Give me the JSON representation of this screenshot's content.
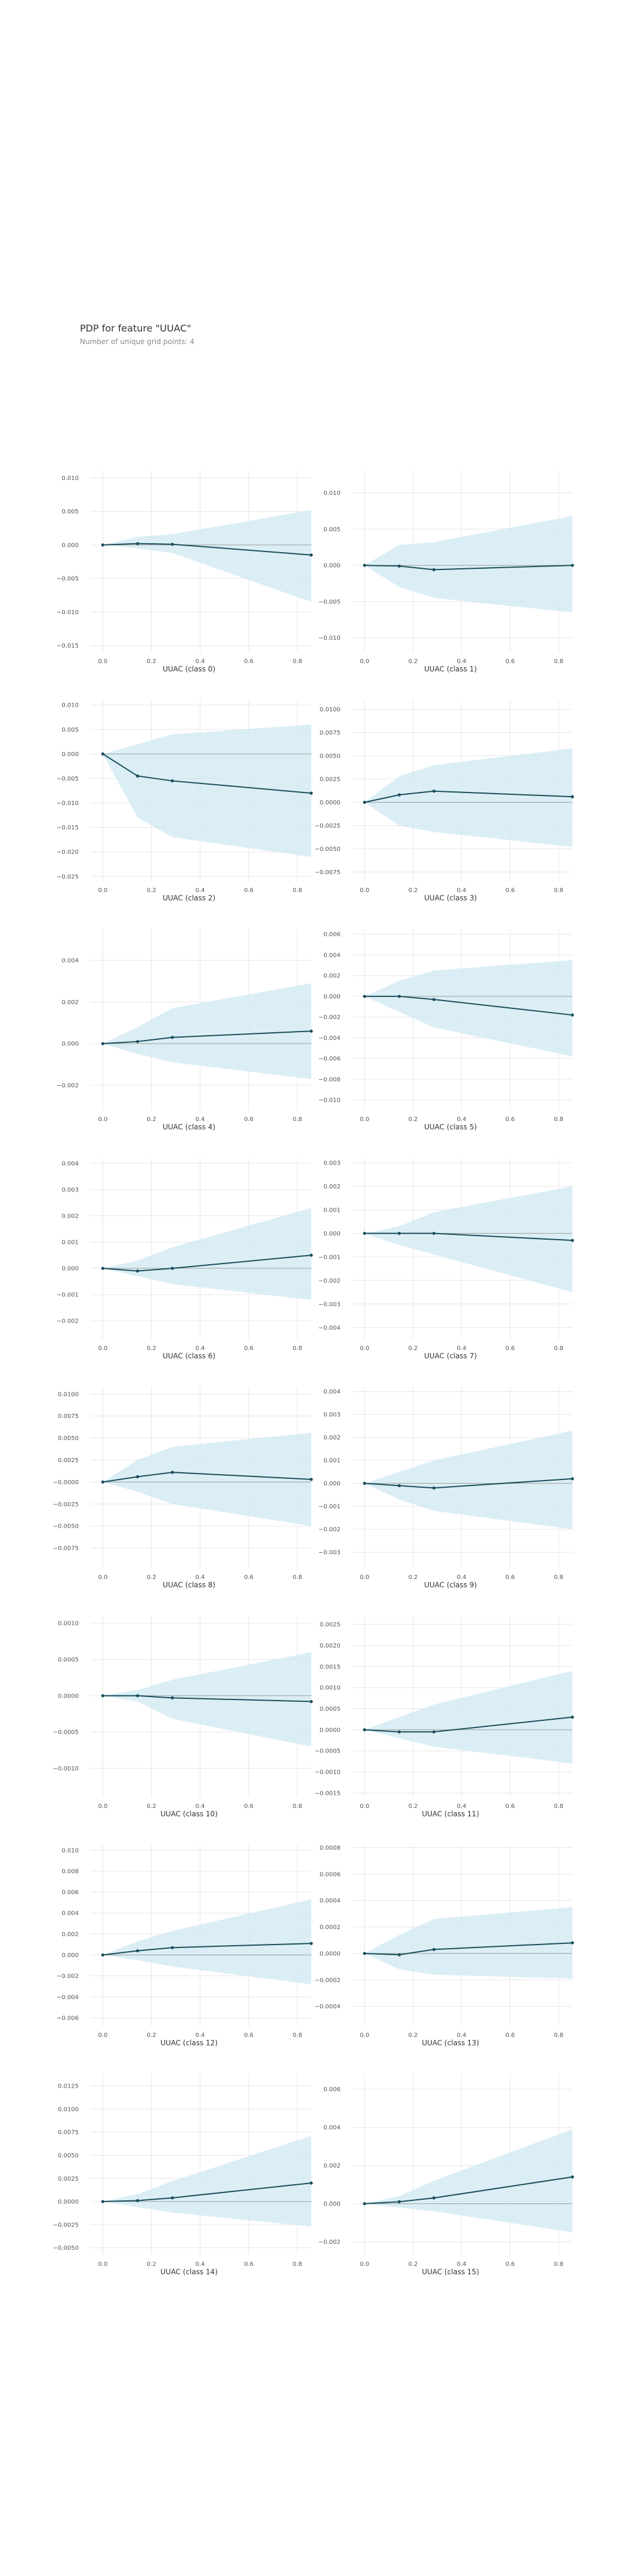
{
  "header": {
    "title": "PDP for feature \"UUAC\"",
    "subtitle": "Number of unique grid points: 4"
  },
  "colors": {
    "band": "#cfe8f3",
    "line": "#1a4e5a",
    "zero_line": "#9e9e9e",
    "grid": "#e6e6e6",
    "tick_text": "#555555"
  },
  "chart_data": [
    {
      "type": "line",
      "xlabel": "UUAC (class 0)",
      "x": [
        0,
        0.143,
        0.286,
        0.857
      ],
      "xticks": [
        0,
        0.2,
        0.4,
        0.6,
        0.8
      ],
      "xticklabels": [
        "0.0",
        "0.2",
        "0.4",
        "0.6",
        "0.8"
      ],
      "ylim": [
        -0.016,
        0.011
      ],
      "yticks": [
        0.01,
        0.005,
        0,
        -0.005,
        -0.01,
        -0.015
      ],
      "yticklabels": [
        "0.010",
        "0.005",
        "0.000",
        "−0.005",
        "−0.010",
        "−0.015"
      ],
      "series": [
        {
          "values": [
            0,
            0.0002,
            0.0001,
            -0.0015
          ],
          "lower": [
            0,
            -0.0005,
            -0.0012,
            -0.0085
          ],
          "upper": [
            0,
            0.0012,
            0.0016,
            0.0052
          ]
        }
      ]
    },
    {
      "type": "line",
      "xlabel": "UUAC (class 1)",
      "x": [
        0,
        0.143,
        0.286,
        0.857
      ],
      "xticks": [
        0,
        0.2,
        0.4,
        0.6,
        0.8
      ],
      "xticklabels": [
        "0.0",
        "0.2",
        "0.4",
        "0.6",
        "0.8"
      ],
      "ylim": [
        -0.012,
        0.013
      ],
      "yticks": [
        0.01,
        0.005,
        0,
        -0.005,
        -0.01
      ],
      "yticklabels": [
        "0.010",
        "0.005",
        "0.000",
        "−0.005",
        "−0.010"
      ],
      "series": [
        {
          "values": [
            0,
            -0.0001,
            -0.0006,
            0
          ],
          "lower": [
            0,
            -0.003,
            -0.0045,
            -0.0065
          ],
          "upper": [
            0,
            0.0028,
            0.0032,
            0.0068
          ]
        }
      ]
    },
    {
      "type": "line",
      "xlabel": "UUAC (class 2)",
      "x": [
        0,
        0.143,
        0.286,
        0.857
      ],
      "xticks": [
        0,
        0.2,
        0.4,
        0.6,
        0.8
      ],
      "xticklabels": [
        "0.0",
        "0.2",
        "0.4",
        "0.6",
        "0.8"
      ],
      "ylim": [
        -0.026,
        0.011
      ],
      "yticks": [
        0.01,
        0.005,
        0,
        -0.005,
        -0.01,
        -0.015,
        -0.02,
        -0.025
      ],
      "yticklabels": [
        "0.010",
        "0.005",
        "0.000",
        "−0.005",
        "−0.010",
        "−0.015",
        "−0.020",
        "−0.025"
      ],
      "series": [
        {
          "values": [
            0,
            -0.0045,
            -0.0055,
            -0.008
          ],
          "lower": [
            0,
            -0.013,
            -0.017,
            -0.021
          ],
          "upper": [
            0,
            0.002,
            0.004,
            0.006
          ]
        }
      ]
    },
    {
      "type": "line",
      "xlabel": "UUAC (class 3)",
      "x": [
        0,
        0.143,
        0.286,
        0.857
      ],
      "xticks": [
        0,
        0.2,
        0.4,
        0.6,
        0.8
      ],
      "xticklabels": [
        "0.0",
        "0.2",
        "0.4",
        "0.6",
        "0.8"
      ],
      "ylim": [
        -0.0085,
        0.011
      ],
      "yticks": [
        0.01,
        0.0075,
        0.005,
        0.0025,
        0,
        -0.0025,
        -0.005,
        -0.0075
      ],
      "yticklabels": [
        "0.0100",
        "0.0075",
        "0.0050",
        "0.0025",
        "0.0000",
        "−0.0025",
        "−0.0050",
        "−0.0075"
      ],
      "series": [
        {
          "values": [
            0,
            0.0008,
            0.0012,
            0.0006
          ],
          "lower": [
            0,
            -0.0025,
            -0.0032,
            -0.0048
          ],
          "upper": [
            0,
            0.0028,
            0.004,
            0.0058
          ]
        }
      ]
    },
    {
      "type": "line",
      "xlabel": "UUAC (class 4)",
      "x": [
        0,
        0.143,
        0.286,
        0.857
      ],
      "xticks": [
        0,
        0.2,
        0.4,
        0.6,
        0.8
      ],
      "xticklabels": [
        "0.0",
        "0.2",
        "0.4",
        "0.6",
        "0.8"
      ],
      "ylim": [
        -0.0032,
        0.0055
      ],
      "yticks": [
        0.004,
        0.002,
        0,
        -0.002
      ],
      "yticklabels": [
        "0.004",
        "0.002",
        "0.000",
        "−0.002"
      ],
      "series": [
        {
          "values": [
            0,
            0.0001,
            0.0003,
            0.0006
          ],
          "lower": [
            0,
            -0.0005,
            -0.0009,
            -0.0017
          ],
          "upper": [
            0,
            0.0008,
            0.0017,
            0.0029
          ]
        }
      ]
    },
    {
      "type": "line",
      "xlabel": "UUAC (class 5)",
      "x": [
        0,
        0.143,
        0.286,
        0.857
      ],
      "xticks": [
        0,
        0.2,
        0.4,
        0.6,
        0.8
      ],
      "xticklabels": [
        "0.0",
        "0.2",
        "0.4",
        "0.6",
        "0.8"
      ],
      "ylim": [
        -0.011,
        0.0065
      ],
      "yticks": [
        0.006,
        0.004,
        0.002,
        0,
        -0.002,
        -0.004,
        -0.006,
        -0.008,
        -0.01
      ],
      "yticklabels": [
        "0.006",
        "0.004",
        "0.002",
        "0.000",
        "−0.002",
        "−0.004",
        "−0.006",
        "−0.008",
        "−0.010"
      ],
      "series": [
        {
          "values": [
            0,
            0,
            -0.0003,
            -0.0018
          ],
          "lower": [
            0,
            -0.0015,
            -0.003,
            -0.0058
          ],
          "upper": [
            0,
            0.0015,
            0.0025,
            0.0035
          ]
        }
      ]
    },
    {
      "type": "line",
      "xlabel": "UUAC (class 6)",
      "x": [
        0,
        0.143,
        0.286,
        0.857
      ],
      "xticks": [
        0,
        0.2,
        0.4,
        0.6,
        0.8
      ],
      "xticklabels": [
        "0.0",
        "0.2",
        "0.4",
        "0.6",
        "0.8"
      ],
      "ylim": [
        -0.0027,
        0.0042
      ],
      "yticks": [
        0.004,
        0.003,
        0.002,
        0.001,
        0,
        -0.001,
        -0.002
      ],
      "yticklabels": [
        "0.004",
        "0.003",
        "0.002",
        "0.001",
        "0.000",
        "−0.001",
        "−0.002"
      ],
      "series": [
        {
          "values": [
            0,
            -0.0001,
            0,
            0.0005
          ],
          "lower": [
            0,
            -0.0003,
            -0.0006,
            -0.0012
          ],
          "upper": [
            0,
            0.0003,
            0.0008,
            0.0023
          ]
        }
      ]
    },
    {
      "type": "line",
      "xlabel": "UUAC (class 7)",
      "x": [
        0,
        0.143,
        0.286,
        0.857
      ],
      "xticks": [
        0,
        0.2,
        0.4,
        0.6,
        0.8
      ],
      "xticklabels": [
        "0.0",
        "0.2",
        "0.4",
        "0.6",
        "0.8"
      ],
      "ylim": [
        -0.0045,
        0.0032
      ],
      "yticks": [
        0.003,
        0.002,
        0.001,
        0,
        -0.001,
        -0.002,
        -0.003,
        -0.004
      ],
      "yticklabels": [
        "0.003",
        "0.002",
        "0.001",
        "0.000",
        "−0.001",
        "−0.002",
        "−0.003",
        "−0.004"
      ],
      "series": [
        {
          "values": [
            0,
            0,
            0,
            -0.0003
          ],
          "lower": [
            0,
            -0.0005,
            -0.0009,
            -0.0025
          ],
          "upper": [
            0,
            0.0003,
            0.0009,
            0.002
          ]
        }
      ]
    },
    {
      "type": "line",
      "xlabel": "UUAC (class 8)",
      "x": [
        0,
        0.143,
        0.286,
        0.857
      ],
      "xticks": [
        0,
        0.2,
        0.4,
        0.6,
        0.8
      ],
      "xticklabels": [
        "0.0",
        "0.2",
        "0.4",
        "0.6",
        "0.8"
      ],
      "ylim": [
        -0.0098,
        0.0108
      ],
      "yticks": [
        0.01,
        0.0075,
        0.005,
        0.0025,
        0,
        -0.0025,
        -0.005,
        -0.0075
      ],
      "yticklabels": [
        "0.0100",
        "0.0075",
        "0.0050",
        "0.0025",
        "−0.0000",
        "−0.0025",
        "−0.0050",
        "−0.0075"
      ],
      "series": [
        {
          "values": [
            0,
            0.0006,
            0.0011,
            0.0003
          ],
          "lower": [
            0,
            -0.0011,
            -0.0025,
            -0.005
          ],
          "upper": [
            0,
            0.0025,
            0.004,
            0.0056
          ]
        }
      ]
    },
    {
      "type": "line",
      "xlabel": "UUAC (class 9)",
      "x": [
        0,
        0.143,
        0.286,
        0.857
      ],
      "xticks": [
        0,
        0.2,
        0.4,
        0.6,
        0.8
      ],
      "xticklabels": [
        "0.0",
        "0.2",
        "0.4",
        "0.6",
        "0.8"
      ],
      "ylim": [
        -0.0037,
        0.0042
      ],
      "yticks": [
        0.004,
        0.003,
        0.002,
        0.001,
        0,
        -0.001,
        -0.002,
        -0.003
      ],
      "yticklabels": [
        "0.004",
        "0.003",
        "0.002",
        "0.001",
        "0.000",
        "−0.001",
        "−0.002",
        "−0.003"
      ],
      "series": [
        {
          "values": [
            0,
            -0.0001,
            -0.0002,
            0.0002
          ],
          "lower": [
            0,
            -0.0007,
            -0.0012,
            -0.002
          ],
          "upper": [
            0,
            0.0005,
            0.001,
            0.0023
          ]
        }
      ]
    },
    {
      "type": "line",
      "xlabel": "UUAC (class 10)",
      "x": [
        0,
        0.143,
        0.286,
        0.857
      ],
      "xticks": [
        0,
        0.2,
        0.4,
        0.6,
        0.8
      ],
      "xticklabels": [
        "0.0",
        "0.2",
        "0.4",
        "0.6",
        "0.8"
      ],
      "ylim": [
        -0.0014,
        0.0011
      ],
      "yticks": [
        0.001,
        0.0005,
        0,
        -0.0005,
        -0.001
      ],
      "yticklabels": [
        "0.0010",
        "0.0005",
        "0.0000",
        "−0.0005",
        "−0.0010"
      ],
      "series": [
        {
          "values": [
            0,
            0,
            -3e-05,
            -8e-05
          ],
          "lower": [
            0,
            -8e-05,
            -0.00032,
            -0.0007
          ],
          "upper": [
            0,
            8e-05,
            0.00022,
            0.0006
          ]
        }
      ]
    },
    {
      "type": "line",
      "xlabel": "UUAC (class 11)",
      "x": [
        0,
        0.143,
        0.286,
        0.857
      ],
      "xticks": [
        0,
        0.2,
        0.4,
        0.6,
        0.8
      ],
      "xticklabels": [
        "0.0",
        "0.2",
        "0.4",
        "0.6",
        "0.8"
      ],
      "ylim": [
        -0.0016,
        0.0027
      ],
      "yticks": [
        0.0025,
        0.002,
        0.0015,
        0.001,
        0.0005,
        0,
        -0.0005,
        -0.001,
        -0.0015
      ],
      "yticklabels": [
        "0.0025",
        "0.0020",
        "0.0015",
        "0.0010",
        "0.0005",
        "0.0000",
        "−0.0005",
        "−0.0010",
        "−0.0015"
      ],
      "series": [
        {
          "values": [
            0,
            -5e-05,
            -5e-05,
            0.0003
          ],
          "lower": [
            0,
            -0.0002,
            -0.0004,
            -0.0008
          ],
          "upper": [
            0,
            0.0003,
            0.0006,
            0.0014
          ]
        }
      ]
    },
    {
      "type": "line",
      "xlabel": "UUAC (class 12)",
      "x": [
        0,
        0.143,
        0.286,
        0.857
      ],
      "xticks": [
        0,
        0.2,
        0.4,
        0.6,
        0.8
      ],
      "xticklabels": [
        "0.0",
        "0.2",
        "0.4",
        "0.6",
        "0.8"
      ],
      "ylim": [
        -0.0068,
        0.0105
      ],
      "yticks": [
        0.01,
        0.008,
        0.006,
        0.004,
        0.002,
        0,
        -0.002,
        -0.004,
        -0.006
      ],
      "yticklabels": [
        "0.010",
        "0.008",
        "0.006",
        "0.004",
        "0.002",
        "0.000",
        "−0.002",
        "−0.004",
        "−0.006"
      ],
      "series": [
        {
          "values": [
            0,
            0.0004,
            0.0007,
            0.0011
          ],
          "lower": [
            0,
            -0.0005,
            -0.0011,
            -0.0028
          ],
          "upper": [
            0,
            0.0013,
            0.0023,
            0.0053
          ]
        }
      ]
    },
    {
      "type": "line",
      "xlabel": "UUAC (class 13)",
      "x": [
        0,
        0.143,
        0.286,
        0.857
      ],
      "xticks": [
        0,
        0.2,
        0.4,
        0.6,
        0.8
      ],
      "xticklabels": [
        "0.0",
        "0.2",
        "0.4",
        "0.6",
        "0.8"
      ],
      "ylim": [
        -0.00055,
        0.00082
      ],
      "yticks": [
        0.0008,
        0.0006,
        0.0004,
        0.0002,
        0,
        -0.0002,
        -0.0004
      ],
      "yticklabels": [
        "0.0008",
        "0.0006",
        "0.0004",
        "0.0002",
        "0.0000",
        "−0.0002",
        "−0.0004"
      ],
      "series": [
        {
          "values": [
            0,
            -1e-05,
            3e-05,
            8e-05
          ],
          "lower": [
            0,
            -0.00012,
            -0.00016,
            -0.00019
          ],
          "upper": [
            0,
            0.00014,
            0.00026,
            0.00035
          ]
        }
      ]
    },
    {
      "type": "line",
      "xlabel": "UUAC (class 14)",
      "x": [
        0,
        0.143,
        0.286,
        0.857
      ],
      "xticks": [
        0,
        0.2,
        0.4,
        0.6,
        0.8
      ],
      "xticklabels": [
        "0.0",
        "0.2",
        "0.4",
        "0.6",
        "0.8"
      ],
      "ylim": [
        -0.0058,
        0.0138
      ],
      "yticks": [
        0.0125,
        0.01,
        0.0075,
        0.005,
        0.0025,
        0,
        -0.0025,
        -0.005
      ],
      "yticklabels": [
        "0.0125",
        "0.0100",
        "0.0075",
        "0.0050",
        "0.0025",
        "0.0000",
        "−0.0025",
        "−0.0050"
      ],
      "series": [
        {
          "values": [
            0,
            0.0001,
            0.0004,
            0.002
          ],
          "lower": [
            0,
            -0.0006,
            -0.0012,
            -0.0027
          ],
          "upper": [
            0,
            0.0008,
            0.0022,
            0.0071
          ]
        }
      ]
    },
    {
      "type": "line",
      "xlabel": "UUAC (class 15)",
      "x": [
        0,
        0.143,
        0.286,
        0.857
      ],
      "xticks": [
        0,
        0.2,
        0.4,
        0.6,
        0.8
      ],
      "xticklabels": [
        "0.0",
        "0.2",
        "0.4",
        "0.6",
        "0.8"
      ],
      "ylim": [
        -0.0027,
        0.0068
      ],
      "yticks": [
        0.006,
        0.004,
        0.002,
        0,
        -0.002
      ],
      "yticklabels": [
        "0.006",
        "0.004",
        "0.002",
        "0.000",
        "−0.002"
      ],
      "series": [
        {
          "values": [
            0,
            0.0001,
            0.0003,
            0.0014
          ],
          "lower": [
            0,
            -0.0002,
            -0.0004,
            -0.0015
          ],
          "upper": [
            0,
            0.0004,
            0.0012,
            0.0039
          ]
        }
      ]
    }
  ]
}
